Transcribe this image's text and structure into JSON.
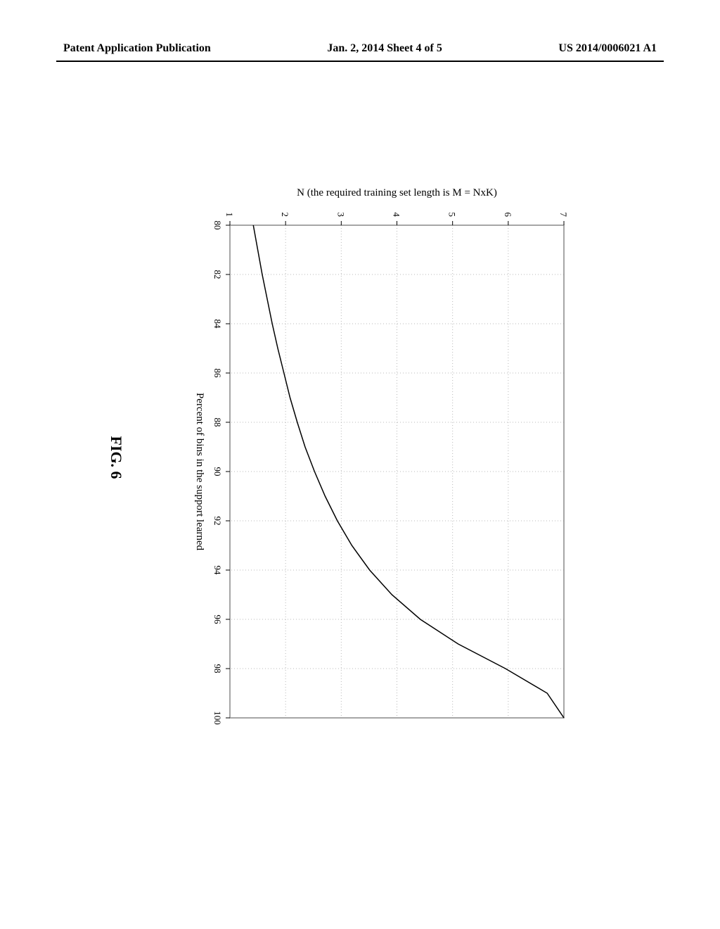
{
  "header": {
    "left": "Patent Application Publication",
    "center": "Jan. 2, 2014  Sheet 4 of 5",
    "right": "US 2014/0006021 A1"
  },
  "chart": {
    "type": "line",
    "xlabel": "Percent of bins in the support learned",
    "ylabel": "N (the required training set length is M = NxK)",
    "xlim": [
      80,
      100
    ],
    "ylim": [
      1,
      7
    ],
    "xtick_step": 2,
    "ytick_step": 1,
    "xticks": [
      80,
      82,
      84,
      86,
      88,
      90,
      92,
      94,
      96,
      98,
      100
    ],
    "yticks": [
      1,
      2,
      3,
      4,
      5,
      6,
      7
    ],
    "line_color": "#000000",
    "line_width": 1.5,
    "grid_color": "#b8b8b8",
    "border_color": "#888888",
    "background_color": "#ffffff",
    "tick_fontsize": 13,
    "label_fontsize": 15,
    "data": [
      {
        "x": 80.0,
        "y": 1.42
      },
      {
        "x": 81.0,
        "y": 1.5
      },
      {
        "x": 82.0,
        "y": 1.58
      },
      {
        "x": 83.0,
        "y": 1.67
      },
      {
        "x": 84.0,
        "y": 1.76
      },
      {
        "x": 85.0,
        "y": 1.86
      },
      {
        "x": 86.0,
        "y": 1.97
      },
      {
        "x": 87.0,
        "y": 2.08
      },
      {
        "x": 88.0,
        "y": 2.21
      },
      {
        "x": 89.0,
        "y": 2.35
      },
      {
        "x": 90.0,
        "y": 2.52
      },
      {
        "x": 91.0,
        "y": 2.71
      },
      {
        "x": 92.0,
        "y": 2.93
      },
      {
        "x": 93.0,
        "y": 3.19
      },
      {
        "x": 94.0,
        "y": 3.51
      },
      {
        "x": 95.0,
        "y": 3.91
      },
      {
        "x": 96.0,
        "y": 4.42
      },
      {
        "x": 97.0,
        "y": 5.1
      },
      {
        "x": 98.0,
        "y": 5.95
      },
      {
        "x": 99.0,
        "y": 6.7
      },
      {
        "x": 100.0,
        "y": 7.0
      }
    ]
  },
  "figure_label": "FIG. 6"
}
